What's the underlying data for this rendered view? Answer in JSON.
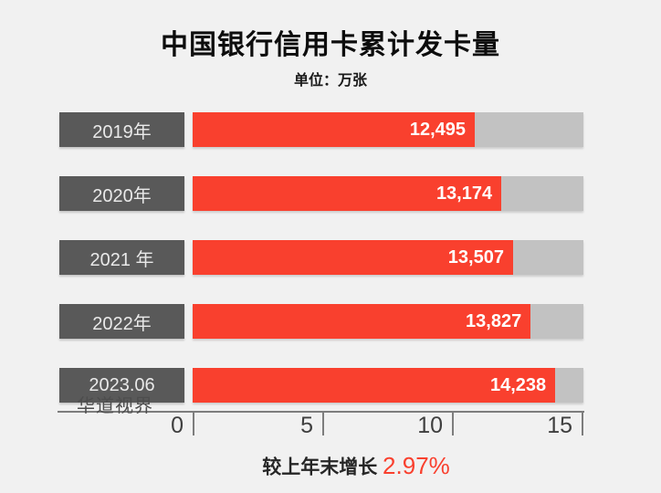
{
  "chart_data": {
    "type": "bar",
    "orientation": "horizontal",
    "title": "中国银行信用卡累计发卡量",
    "subtitle": "单位：万张",
    "categories": [
      "2019年",
      "2020年",
      "2021 年",
      "2022年",
      "2023.06"
    ],
    "values": [
      12495,
      13174,
      13507,
      13827,
      14238
    ],
    "value_labels": [
      "12,495",
      "13,174",
      "13,507",
      "13,827",
      "14,238"
    ],
    "x_axis": {
      "tick_labels": [
        "0",
        "5",
        "10",
        "15"
      ],
      "range": [
        0,
        15
      ],
      "unit": "千 (axis) / 万张 (values)",
      "grid": false
    },
    "bar_fill_percent": [
      72.2,
      79.0,
      82.0,
      86.5,
      92.8
    ],
    "legend": null,
    "footer_prefix": "较上年末增长 ",
    "footer_value": "2.97%",
    "watermark": "华道视界",
    "colors": {
      "bar": "#F9402E",
      "track": "#C2C2C2",
      "category_box": "#595959",
      "background": "#F1F1F1",
      "highlight_text": "#F9402E"
    }
  }
}
